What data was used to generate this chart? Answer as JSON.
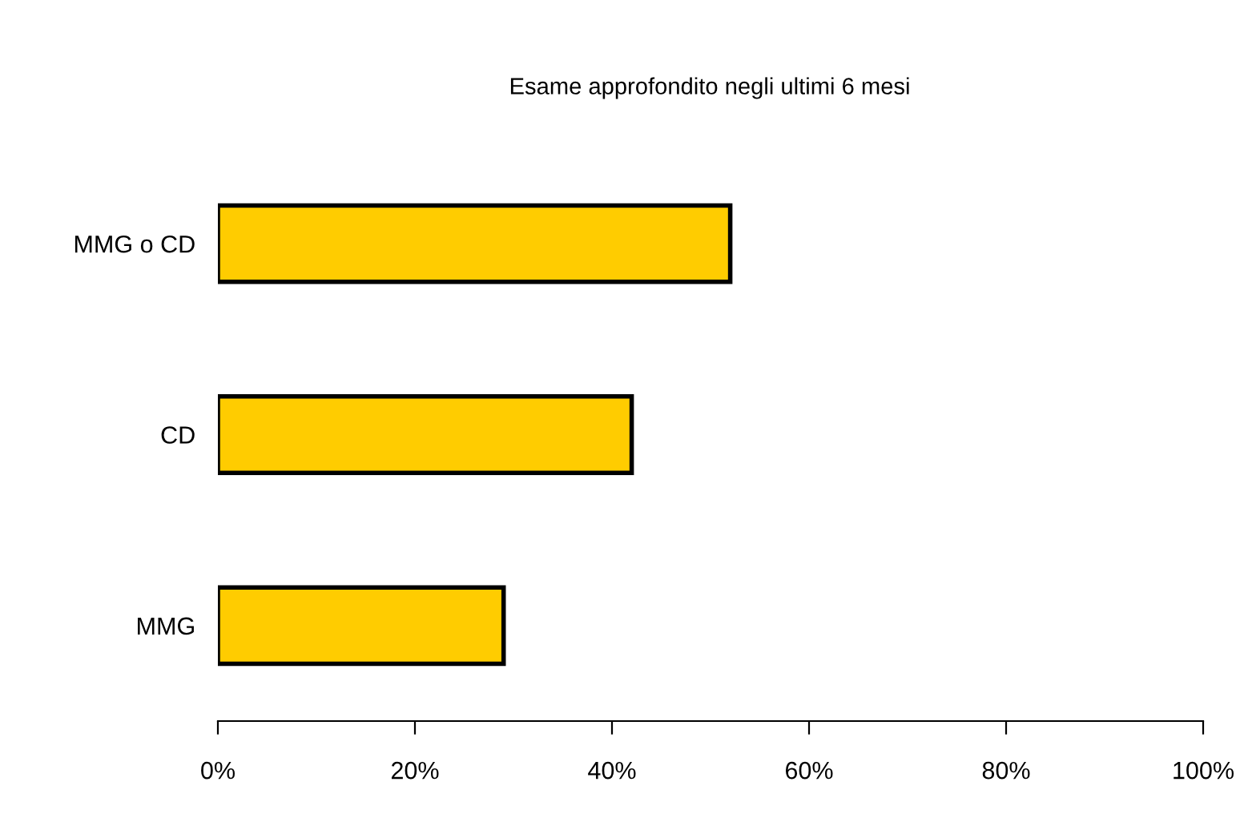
{
  "chart_data": {
    "type": "bar",
    "orientation": "horizontal",
    "title": "Esame approfondito negli ultimi 6 mesi",
    "categories": [
      "MMG o CD",
      "CD",
      "MMG"
    ],
    "values": [
      52,
      42,
      29
    ],
    "color": "#ffcc00",
    "xlim": [
      0,
      100
    ],
    "xticks": [
      {
        "value": 0,
        "label": "0%"
      },
      {
        "value": 20,
        "label": "20%"
      },
      {
        "value": 40,
        "label": "40%"
      },
      {
        "value": 60,
        "label": "60%"
      },
      {
        "value": 80,
        "label": "80%"
      },
      {
        "value": 100,
        "label": "100%"
      }
    ],
    "grid": false,
    "legend": false
  }
}
